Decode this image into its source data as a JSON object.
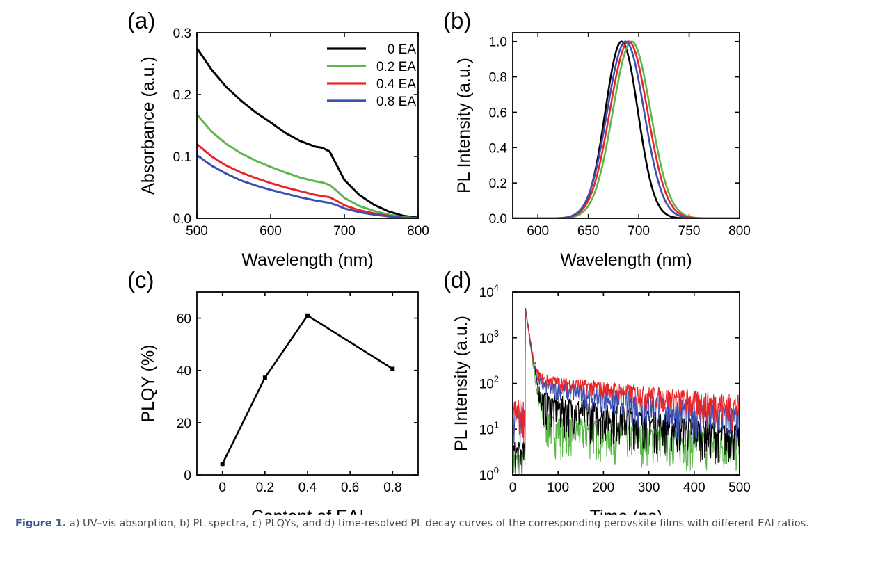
{
  "figure": {
    "caption_label": "Figure 1.",
    "caption_text": " a) UV–vis absorption, b) PL spectra, c) PLQYs, and d) time-resolved PL decay curves of the corresponding perovskite films with different EAI ratios."
  },
  "colors": {
    "0 EA": "#000000",
    "0.2 EA": "#5cb84a",
    "0.4 EA": "#e8262a",
    "0.8 EA": "#3a4fb0"
  },
  "chart_data": [
    {
      "panel": "(a)",
      "type": "line",
      "title": "",
      "xlabel": "Wavelength (nm)",
      "ylabel": "Absorbance (a.u.)",
      "xlim": [
        500,
        800
      ],
      "ylim": [
        0,
        0.3
      ],
      "xticks": [
        500,
        600,
        700,
        800
      ],
      "yticks": [
        0.0,
        0.1,
        0.2,
        0.3
      ],
      "xtick_labels": [
        "500",
        "600",
        "700",
        "800"
      ],
      "ytick_labels": [
        "0.0",
        "0.1",
        "0.2",
        "0.3"
      ],
      "legend_position": "top-right",
      "legend": [
        "0 EA",
        "0.2 EA",
        "0.4 EA",
        "0.8 EA"
      ],
      "x": [
        500,
        520,
        540,
        560,
        580,
        600,
        620,
        640,
        660,
        670,
        680,
        690,
        700,
        720,
        740,
        760,
        780,
        800
      ],
      "series": [
        {
          "name": "0 EA",
          "values": [
            0.275,
            0.24,
            0.212,
            0.19,
            0.171,
            0.155,
            0.138,
            0.125,
            0.116,
            0.114,
            0.108,
            0.085,
            0.062,
            0.038,
            0.022,
            0.011,
            0.004,
            0.001
          ]
        },
        {
          "name": "0.2 EA",
          "values": [
            0.168,
            0.14,
            0.12,
            0.105,
            0.093,
            0.083,
            0.074,
            0.066,
            0.06,
            0.058,
            0.054,
            0.044,
            0.033,
            0.02,
            0.012,
            0.006,
            0.002,
            0.0
          ]
        },
        {
          "name": "0.4 EA",
          "values": [
            0.12,
            0.1,
            0.085,
            0.074,
            0.065,
            0.057,
            0.05,
            0.044,
            0.038,
            0.036,
            0.034,
            0.028,
            0.021,
            0.013,
            0.008,
            0.004,
            0.001,
            0.0
          ]
        },
        {
          "name": "0.8 EA",
          "values": [
            0.102,
            0.085,
            0.072,
            0.061,
            0.053,
            0.046,
            0.04,
            0.034,
            0.029,
            0.027,
            0.025,
            0.021,
            0.016,
            0.01,
            0.006,
            0.003,
            0.001,
            0.0
          ]
        }
      ]
    },
    {
      "panel": "(b)",
      "type": "line",
      "title": "",
      "xlabel": "Wavelength (nm)",
      "ylabel": "PL Intensity (a.u.)",
      "xlim": [
        575,
        800
      ],
      "ylim": [
        0,
        1.05
      ],
      "xticks": [
        600,
        650,
        700,
        750,
        800
      ],
      "yticks": [
        0.0,
        0.2,
        0.4,
        0.6,
        0.8,
        1.0
      ],
      "xtick_labels": [
        "600",
        "650",
        "700",
        "750",
        "800"
      ],
      "ytick_labels": [
        "0.0",
        "0.2",
        "0.4",
        "0.6",
        "0.8",
        "1.0"
      ],
      "series": [
        {
          "name": "0 EA",
          "peak_nm": 683,
          "fwhm_nm": 38,
          "max": 1.0
        },
        {
          "name": "0.2 EA",
          "peak_nm": 693,
          "fwhm_nm": 44,
          "max": 1.0
        },
        {
          "name": "0.4 EA",
          "peak_nm": 690,
          "fwhm_nm": 44,
          "max": 1.0
        },
        {
          "name": "0.8 EA",
          "peak_nm": 687,
          "fwhm_nm": 43,
          "max": 1.0
        }
      ]
    },
    {
      "panel": "(c)",
      "type": "line",
      "title": "",
      "xlabel": "Content of EAI",
      "ylabel": "PLQY (%)",
      "xlim": [
        -0.12,
        0.92
      ],
      "ylim": [
        0,
        70
      ],
      "xticks": [
        0,
        0.2,
        0.4,
        0.6,
        0.8
      ],
      "yticks": [
        0,
        20,
        40,
        60
      ],
      "xtick_labels": [
        "0",
        "0.2",
        "0.4",
        "0.6",
        "0.8"
      ],
      "ytick_labels": [
        "0",
        "20",
        "40",
        "60"
      ],
      "x": [
        0,
        0.2,
        0.4,
        0.8
      ],
      "series": [
        {
          "name": "",
          "values": [
            4.2,
            37.2,
            61,
            40.6
          ]
        }
      ]
    },
    {
      "panel": "(d)",
      "type": "line",
      "title": "",
      "xlabel": "Time (ns)",
      "ylabel": "PL Intensity (a.u.)",
      "xlim": [
        0,
        500
      ],
      "ylim": [
        1,
        10000
      ],
      "y_scale": "log",
      "xticks": [
        0,
        100,
        200,
        300,
        400,
        500
      ],
      "yticks": [
        1,
        10,
        100,
        1000,
        10000
      ],
      "xtick_labels": [
        "0",
        "100",
        "200",
        "300",
        "400",
        "500"
      ],
      "ytick_labels": [
        "10",
        "10",
        "10",
        "10",
        "10"
      ],
      "ytick_exponents": [
        "0",
        "1",
        "2",
        "3",
        "4"
      ],
      "series": [
        {
          "name": "0 EA",
          "rise_ns": 28,
          "peak": 4800,
          "background": 3,
          "tail_200ns": 20,
          "tail_500ns": 6
        },
        {
          "name": "0.2 EA",
          "rise_ns": 28,
          "peak": 4300,
          "background": 2,
          "tail_200ns": 8,
          "tail_500ns": 4
        },
        {
          "name": "0.4 EA",
          "rise_ns": 28,
          "peak": 4200,
          "background": 25,
          "tail_200ns": 70,
          "tail_500ns": 24
        },
        {
          "name": "0.8 EA",
          "rise_ns": 28,
          "peak": 4600,
          "background": 18,
          "tail_200ns": 45,
          "tail_500ns": 12
        }
      ]
    }
  ]
}
